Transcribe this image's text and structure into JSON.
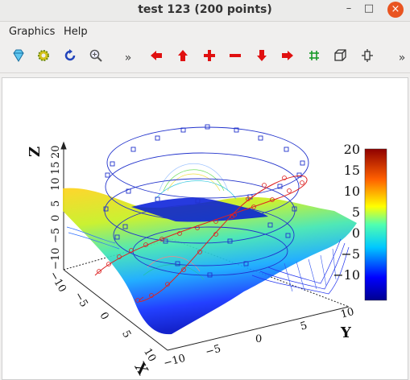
{
  "window": {
    "title": "test 123 (200 points)",
    "minimize": "–",
    "maximize": "□",
    "close": "×"
  },
  "menu": {
    "graphics": "Graphics",
    "help": "Help"
  },
  "toolbar": {
    "overflow": "»",
    "icons": [
      "diamond-icon",
      "gear-icon",
      "rotate-icon",
      "zoom-icon",
      "arrow-left-icon",
      "arrow-up-icon",
      "plus-icon",
      "minus-icon",
      "arrow-down-icon",
      "arrow-right-icon",
      "grid-icon",
      "cube-icon",
      "crop-icon"
    ]
  },
  "plot": {
    "z_axis_label": "Z",
    "x_axis_label": "X",
    "y_axis_label": "Y",
    "z_ticks": [
      "−10",
      "−5",
      "0",
      "5",
      "10",
      "15",
      "20"
    ],
    "x_ticks": [
      "−10",
      "−5",
      "0",
      "5",
      "10"
    ],
    "y_ticks": [
      "−10",
      "−5",
      "0",
      "5",
      "10"
    ],
    "colorbar_ticks": [
      "20",
      "15",
      "10",
      "5",
      "0",
      "−5",
      "−10"
    ],
    "colors": {
      "spiral_blue": "#2233cc",
      "spiral_red": "#dd2222",
      "mesh": "#3355ee"
    }
  }
}
